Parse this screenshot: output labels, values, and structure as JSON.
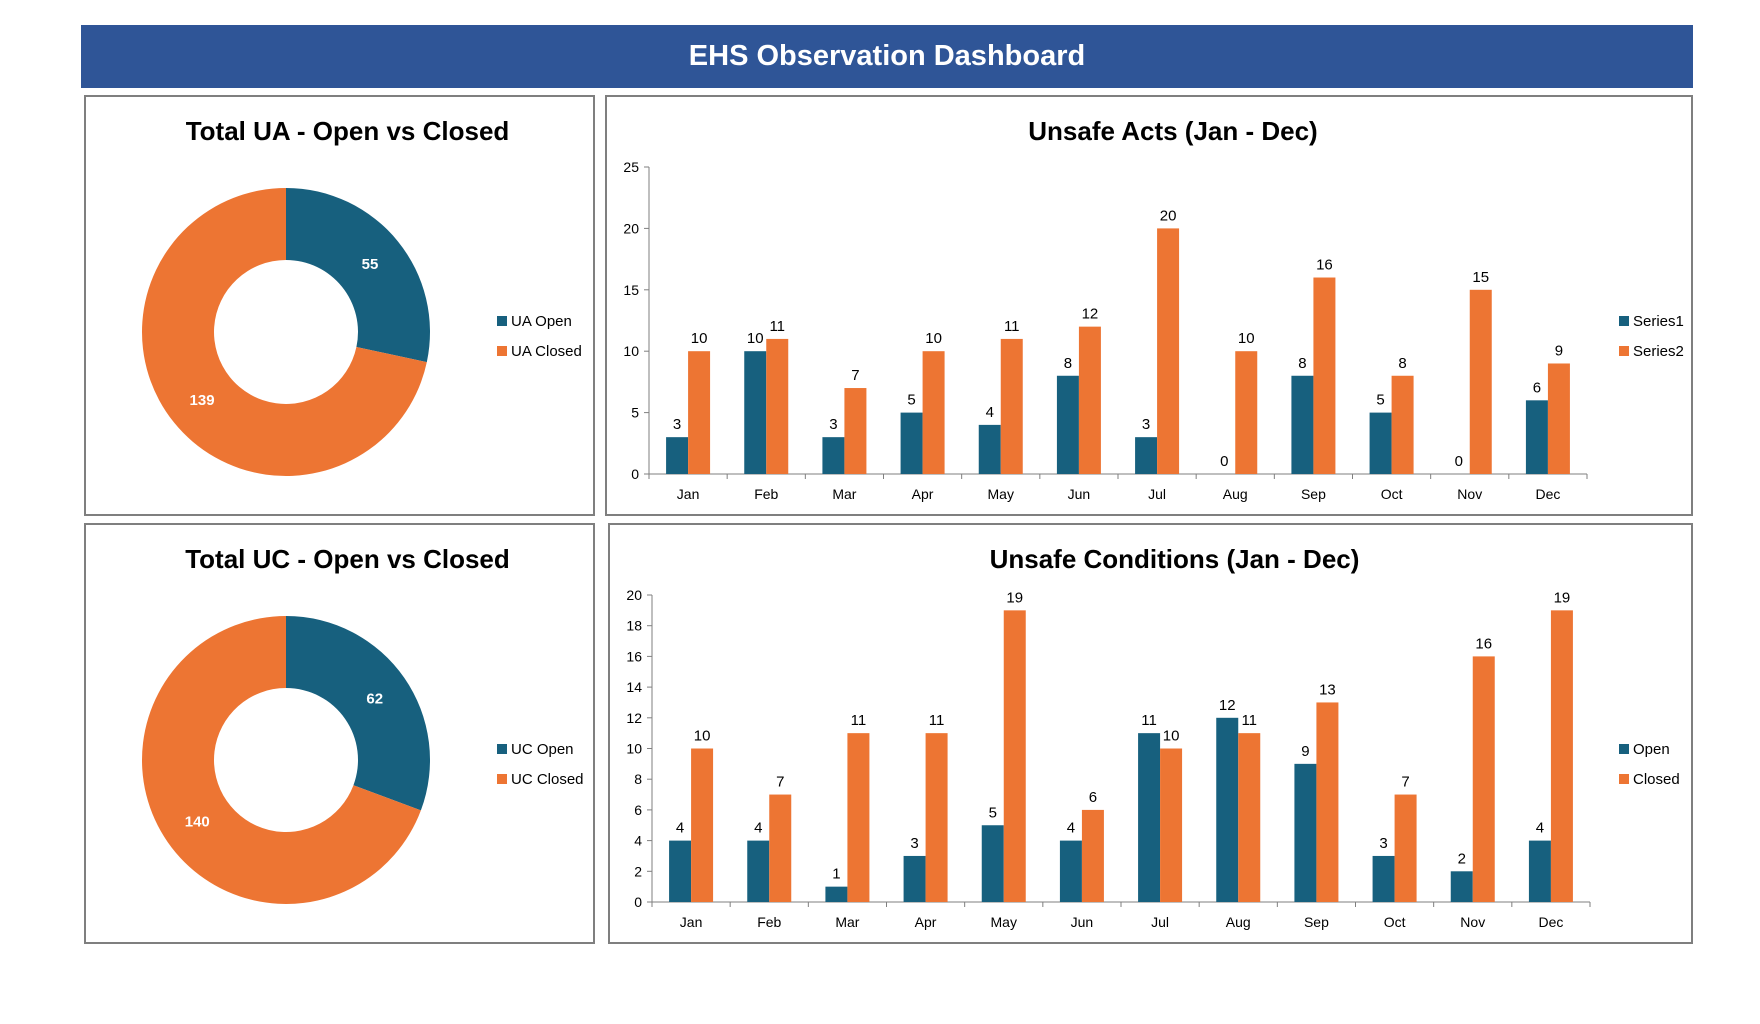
{
  "header": {
    "title": "EHS Observation Dashboard"
  },
  "colors": {
    "open": "#17607E",
    "closed": "#ED7533",
    "banner": "#2F5597"
  },
  "chart_data": [
    {
      "id": "ua-donut",
      "type": "pie",
      "title": "Total UA - Open vs Closed",
      "labels": [
        "UA Open",
        "UA Closed"
      ],
      "values": [
        55,
        139
      ],
      "legend": "right"
    },
    {
      "id": "ua-bar",
      "type": "bar",
      "title": "Unsafe Acts (Jan - Dec)",
      "categories": [
        "Jan",
        "Feb",
        "Mar",
        "Apr",
        "May",
        "Jun",
        "Jul",
        "Aug",
        "Sep",
        "Oct",
        "Nov",
        "Dec"
      ],
      "series": [
        {
          "name": "Series1",
          "values": [
            3,
            10,
            3,
            5,
            4,
            8,
            3,
            0,
            8,
            5,
            0,
            6
          ]
        },
        {
          "name": "Series2",
          "values": [
            10,
            11,
            7,
            10,
            11,
            12,
            20,
            10,
            16,
            8,
            15,
            9
          ]
        }
      ],
      "ylim": [
        0,
        25
      ],
      "yticks": [
        0,
        5,
        10,
        15,
        20,
        25
      ],
      "grid": false,
      "legend": "right"
    },
    {
      "id": "uc-donut",
      "type": "pie",
      "title": "Total UC - Open vs Closed",
      "labels": [
        "UC Open",
        "UC Closed"
      ],
      "values": [
        62,
        140
      ],
      "legend": "right"
    },
    {
      "id": "uc-bar",
      "type": "bar",
      "title": "Unsafe Conditions (Jan - Dec)",
      "categories": [
        "Jan",
        "Feb",
        "Mar",
        "Apr",
        "May",
        "Jun",
        "Jul",
        "Aug",
        "Sep",
        "Oct",
        "Nov",
        "Dec"
      ],
      "series": [
        {
          "name": "Open",
          "values": [
            4,
            4,
            1,
            3,
            5,
            4,
            11,
            12,
            9,
            3,
            2,
            4
          ]
        },
        {
          "name": "Closed",
          "values": [
            10,
            7,
            11,
            11,
            19,
            6,
            10,
            11,
            13,
            7,
            16,
            19
          ]
        }
      ],
      "ylim": [
        0,
        20
      ],
      "yticks": [
        0,
        2,
        4,
        6,
        8,
        10,
        12,
        14,
        16,
        18,
        20
      ],
      "grid": false,
      "legend": "right"
    }
  ]
}
